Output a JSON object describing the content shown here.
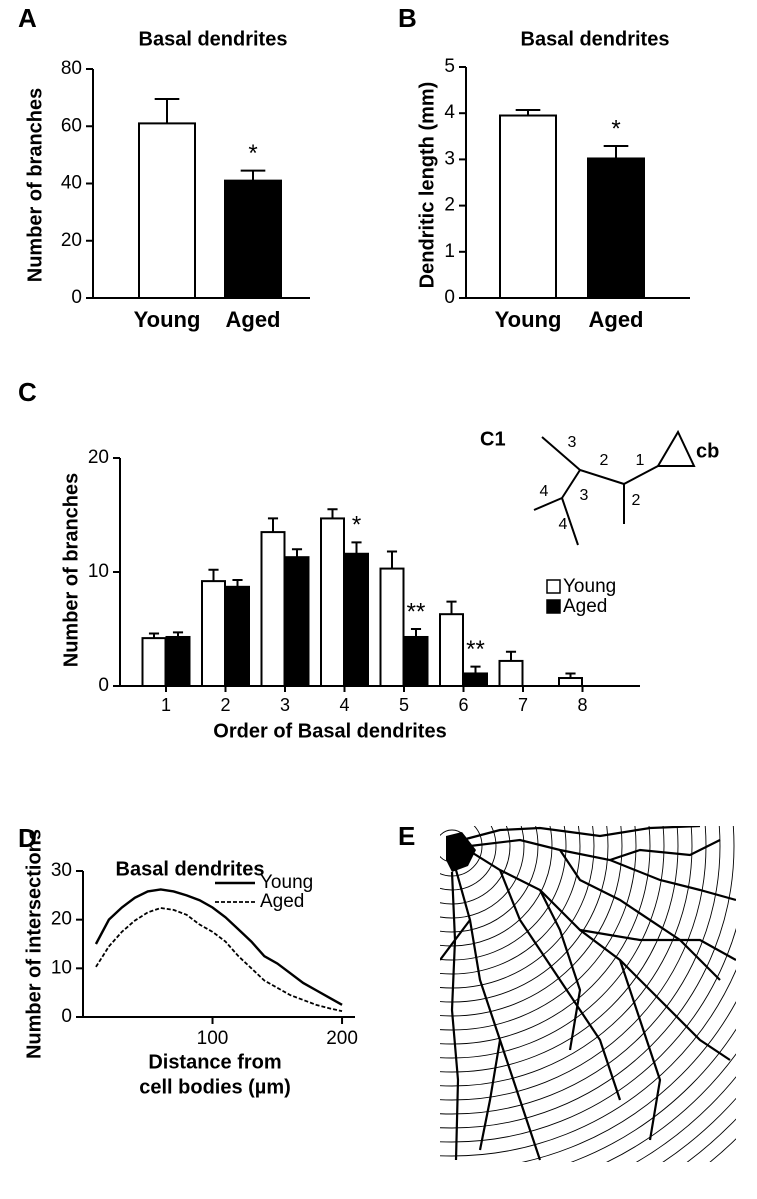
{
  "chart_data": [
    {
      "type": "bar",
      "panel": "A",
      "title": "Basal dendrites",
      "ylabel": "Number of branches",
      "categories": [
        "Young",
        "Aged"
      ],
      "values": [
        61,
        41
      ],
      "errors": [
        8.5,
        3.5
      ],
      "colors": [
        "#ffffff",
        "#000000"
      ],
      "significance": [
        null,
        "*"
      ],
      "ylim": [
        0,
        80
      ],
      "yticks": [
        0,
        20,
        40,
        60,
        80
      ]
    },
    {
      "type": "bar",
      "panel": "B",
      "title": "Basal dendrites",
      "ylabel": "Dendritic length (mm)",
      "categories": [
        "Young",
        "Aged"
      ],
      "values": [
        3.95,
        3.02
      ],
      "errors": [
        0.12,
        0.27
      ],
      "colors": [
        "#ffffff",
        "#000000"
      ],
      "significance": [
        null,
        "*"
      ],
      "ylim": [
        0,
        5
      ],
      "yticks": [
        0,
        1,
        2,
        3,
        4,
        5
      ]
    },
    {
      "type": "bar",
      "panel": "C",
      "ylabel": "Number of branches",
      "xlabel": "Order of Basal dendrites",
      "categories": [
        "1",
        "2",
        "3",
        "4",
        "5",
        "6",
        "7",
        "8"
      ],
      "series": [
        {
          "name": "Young",
          "color": "#ffffff",
          "values": [
            4.2,
            9.2,
            13.5,
            14.7,
            10.3,
            6.3,
            2.2,
            0.7
          ],
          "errors": [
            0.4,
            1.0,
            1.2,
            0.8,
            1.5,
            1.1,
            0.8,
            0.4
          ],
          "significance": [
            null,
            null,
            null,
            null,
            null,
            null,
            null,
            null
          ]
        },
        {
          "name": "Aged",
          "color": "#000000",
          "values": [
            4.3,
            8.7,
            11.3,
            11.6,
            4.3,
            1.1,
            null,
            null
          ],
          "errors": [
            0.4,
            0.6,
            0.7,
            1.0,
            0.7,
            0.6,
            null,
            null
          ],
          "significance": [
            null,
            null,
            null,
            "*",
            "**",
            "**",
            null,
            null
          ]
        }
      ],
      "ylim": [
        0,
        20
      ],
      "yticks": [
        0,
        10,
        20
      ],
      "inset": {
        "label": "C1",
        "soma_label": "cb",
        "branch_orders": [
          "1",
          "2",
          "2",
          "3",
          "3",
          "4",
          "4"
        ]
      }
    },
    {
      "type": "line",
      "panel": "D",
      "title": "Basal dendrites",
      "ylabel": "Number of intersections",
      "xlabel": [
        "Distance from",
        "cell bodies (µm)"
      ],
      "x": [
        10,
        20,
        30,
        40,
        50,
        60,
        70,
        80,
        90,
        100,
        110,
        120,
        130,
        140,
        150,
        160,
        170,
        180,
        190,
        200
      ],
      "series": [
        {
          "name": "Young",
          "color": "#000000",
          "dashed": false,
          "values": [
            15,
            20,
            22.5,
            24.5,
            25.8,
            26.2,
            25.8,
            25,
            24,
            22.5,
            20.5,
            18,
            15.5,
            12.5,
            11,
            9,
            7,
            5.5,
            4,
            2.5
          ]
        },
        {
          "name": "Aged",
          "color": "#000000",
          "dashed": true,
          "values": [
            10.3,
            14.5,
            17.5,
            19.8,
            21.5,
            22.4,
            22,
            21,
            19,
            17.5,
            15.5,
            12.5,
            10,
            7.5,
            6,
            4.5,
            3.5,
            2.5,
            1.8,
            1.2
          ]
        }
      ],
      "xlim": [
        0,
        210
      ],
      "xticks": [
        100,
        200
      ],
      "ylim": [
        0,
        30
      ],
      "yticks": [
        0,
        10,
        20,
        30
      ]
    }
  ],
  "image_panel": {
    "label": "E"
  }
}
